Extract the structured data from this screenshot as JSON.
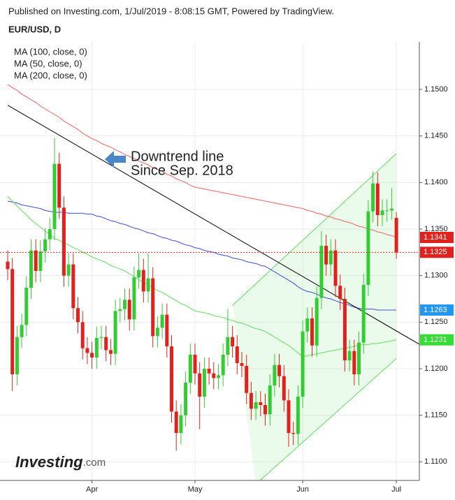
{
  "source": "Published on Investing.com, 1/Jul/2019 - 8:08:15 GMT, Powered by TradingView.",
  "logo": {
    "name": "Investing",
    "suffix": ".com"
  },
  "chart_data": {
    "type": "candlestick",
    "title": "EUR/USD, D",
    "annotations": [
      "Downtrend line",
      "Since Sep. 2018"
    ],
    "categories": [
      null,
      null,
      null,
      null,
      null,
      null,
      null,
      null,
      null,
      null,
      null,
      null,
      null,
      null,
      null,
      null,
      null,
      null,
      "Apr",
      null,
      null,
      null,
      null,
      null,
      null,
      null,
      null,
      null,
      null,
      null,
      null,
      null,
      null,
      null,
      null,
      null,
      null,
      null,
      null,
      null,
      "May",
      null,
      null,
      null,
      null,
      null,
      null,
      null,
      null,
      null,
      null,
      null,
      null,
      null,
      null,
      null,
      null,
      null,
      null,
      null,
      null,
      null,
      null,
      "Jun",
      null,
      null,
      null,
      null,
      null,
      null,
      null,
      null,
      null,
      null,
      null,
      null,
      null,
      null,
      null,
      null,
      null,
      null,
      null,
      "Jul"
    ],
    "open": [
      1.1315,
      1.1307,
      1.1194,
      1.1234,
      1.1247,
      1.1287,
      1.1327,
      1.1305,
      1.1326,
      1.1339,
      1.135,
      1.142,
      1.1373,
      1.13,
      1.1312,
      1.1265,
      1.125,
      1.1222,
      1.1217,
      1.1212,
      1.1233,
      1.1234,
      1.122,
      1.1216,
      1.1262,
      1.1264,
      1.1274,
      1.1253,
      1.1298,
      1.1306,
      1.1283,
      1.1297,
      1.1235,
      1.1244,
      1.1258,
      1.1224,
      1.1154,
      1.1131,
      1.115,
      1.1185,
      1.1215,
      1.1195,
      1.117,
      1.12,
      1.1195,
      1.119,
      1.1193,
      1.1215,
      1.1234,
      1.1224,
      1.1206,
      1.1203,
      1.1174,
      1.1157,
      1.1164,
      1.1161,
      1.1151,
      1.1182,
      1.1204,
      1.1192,
      1.1166,
      1.1131,
      1.113,
      1.117,
      1.124,
      1.1254,
      1.1225,
      1.1276,
      1.1332,
      1.1312,
      1.1327,
      1.1289,
      1.1275,
      1.1209,
      1.1219,
      1.1194,
      1.1228,
      1.129,
      1.1369,
      1.1399,
      1.1365,
      1.137,
      1.137,
      1.1362
    ],
    "high": [
      1.1327,
      1.1319,
      1.1246,
      1.1259,
      1.1299,
      1.1339,
      1.1339,
      1.1338,
      1.1351,
      1.1362,
      1.1448,
      1.1432,
      1.1385,
      1.1324,
      1.1324,
      1.1277,
      1.1262,
      1.1234,
      1.1229,
      1.1245,
      1.1246,
      1.1246,
      1.1232,
      1.1274,
      1.1276,
      1.1286,
      1.1286,
      1.131,
      1.1324,
      1.1318,
      1.1324,
      1.1309,
      1.1256,
      1.127,
      1.127,
      1.1236,
      1.1166,
      1.1162,
      1.1197,
      1.1227,
      1.1227,
      1.1207,
      1.1212,
      1.1212,
      1.1207,
      1.1205,
      1.1227,
      1.1264,
      1.1246,
      1.1236,
      1.1218,
      1.1215,
      1.1186,
      1.1176,
      1.1176,
      1.1173,
      1.1194,
      1.1216,
      1.1216,
      1.1204,
      1.1178,
      1.1143,
      1.1182,
      1.1252,
      1.1266,
      1.1266,
      1.1288,
      1.1348,
      1.1344,
      1.1339,
      1.1339,
      1.1301,
      1.1287,
      1.1231,
      1.1231,
      1.124,
      1.1302,
      1.1381,
      1.1412,
      1.1411,
      1.1382,
      1.1382,
      1.1394,
      1.1368
    ],
    "low": [
      1.1295,
      1.1176,
      1.1182,
      1.1222,
      1.1235,
      1.1275,
      1.1293,
      1.1293,
      1.1314,
      1.1327,
      1.1338,
      1.1361,
      1.1288,
      1.1288,
      1.1253,
      1.1238,
      1.121,
      1.1205,
      1.12,
      1.12,
      1.1221,
      1.1208,
      1.1204,
      1.1204,
      1.125,
      1.1252,
      1.1241,
      1.1241,
      1.1286,
      1.1271,
      1.1271,
      1.1223,
      1.1223,
      1.1232,
      1.1212,
      1.1142,
      1.1112,
      1.1119,
      1.1138,
      1.1173,
      1.1183,
      1.1135,
      1.1158,
      1.1183,
      1.1178,
      1.1178,
      1.1181,
      1.1203,
      1.1212,
      1.1194,
      1.1191,
      1.1162,
      1.1145,
      1.1145,
      1.1149,
      1.1139,
      1.1139,
      1.117,
      1.118,
      1.1154,
      1.1116,
      1.1118,
      1.1118,
      1.1158,
      1.1228,
      1.1213,
      1.1213,
      1.1264,
      1.13,
      1.13,
      1.1277,
      1.1263,
      1.1197,
      1.1197,
      1.1182,
      1.1182,
      1.1216,
      1.1278,
      1.1357,
      1.1353,
      1.1353,
      1.1358,
      1.136,
      1.1318
    ],
    "close": [
      1.1307,
      1.1194,
      1.1234,
      1.1247,
      1.1287,
      1.1327,
      1.1305,
      1.1326,
      1.1339,
      1.135,
      1.142,
      1.1373,
      1.13,
      1.1312,
      1.1265,
      1.125,
      1.1222,
      1.1217,
      1.1212,
      1.1233,
      1.1234,
      1.122,
      1.1216,
      1.1262,
      1.1264,
      1.1274,
      1.1253,
      1.1298,
      1.1306,
      1.1283,
      1.1297,
      1.1235,
      1.1244,
      1.1258,
      1.1224,
      1.1154,
      1.1131,
      1.115,
      1.1185,
      1.1215,
      1.1195,
      1.117,
      1.12,
      1.1195,
      1.119,
      1.1193,
      1.1215,
      1.1234,
      1.1224,
      1.1206,
      1.1203,
      1.1174,
      1.1157,
      1.1164,
      1.1161,
      1.1151,
      1.1182,
      1.1204,
      1.1192,
      1.1166,
      1.1131,
      1.113,
      1.117,
      1.124,
      1.1254,
      1.1225,
      1.1276,
      1.1332,
      1.1312,
      1.1327,
      1.1289,
      1.1275,
      1.1209,
      1.1219,
      1.1194,
      1.1228,
      1.129,
      1.1369,
      1.1399,
      1.1365,
      1.137,
      1.137,
      1.1372,
      1.1325
    ],
    "up_color": "#33cc33",
    "down_color": "#e0211d",
    "series": [
      {
        "name": "MA (100, close, 0)",
        "color": "#f0625c",
        "values": [
          1.1505,
          1.1502,
          1.1499,
          1.1495,
          1.1492,
          1.1489,
          1.1486,
          1.1482,
          1.1479,
          1.1476,
          1.1473,
          1.147,
          1.1466,
          1.1463,
          1.146,
          1.1457,
          1.1453,
          1.145,
          1.1447,
          1.1445,
          1.1442,
          1.144,
          1.1438,
          1.1435,
          1.1433,
          1.143,
          1.1428,
          1.1426,
          1.1423,
          1.1421,
          1.1419,
          1.1416,
          1.1414,
          1.1412,
          1.1409,
          1.1407,
          1.1404,
          1.1402,
          1.14,
          1.1397,
          1.1395,
          1.1394,
          1.1393,
          1.1392,
          1.1391,
          1.139,
          1.1389,
          1.1388,
          1.1387,
          1.1386,
          1.1385,
          1.1384,
          1.1383,
          1.1382,
          1.1381,
          1.138,
          1.1379,
          1.1378,
          1.1377,
          1.1376,
          1.1375,
          1.1374,
          1.1373,
          1.1372,
          1.137,
          1.1369,
          1.1367,
          1.1366,
          1.1364,
          1.1363,
          1.1361,
          1.136,
          1.1358,
          1.1357,
          1.1355,
          1.1353,
          1.1352,
          1.135,
          1.1349,
          1.1347,
          1.1346,
          1.1344,
          1.1343,
          1.1341
        ]
      },
      {
        "name": "MA (50, close, 0)",
        "color": "#3b4fd8",
        "values": [
          1.138,
          1.1379,
          1.1378,
          1.1376,
          1.1375,
          1.1374,
          1.1373,
          1.1372,
          1.137,
          1.1369,
          1.1368,
          1.1368,
          1.1368,
          1.1367,
          1.1367,
          1.1367,
          1.1367,
          1.1366,
          1.1366,
          1.1364,
          1.1363,
          1.1361,
          1.1359,
          1.1358,
          1.1356,
          1.1355,
          1.1353,
          1.1351,
          1.135,
          1.1348,
          1.1346,
          1.1345,
          1.1343,
          1.1341,
          1.134,
          1.1338,
          1.1337,
          1.1335,
          1.1333,
          1.1332,
          1.133,
          1.1329,
          1.1327,
          1.1326,
          1.1325,
          1.1323,
          1.1322,
          1.1321,
          1.1319,
          1.1318,
          1.1317,
          1.1315,
          1.1314,
          1.1313,
          1.1311,
          1.131,
          1.1307,
          1.1304,
          1.1301,
          1.1298,
          1.1295,
          1.1292,
          1.1288,
          1.1285,
          1.1283,
          1.1282,
          1.128,
          1.1278,
          1.1276,
          1.1275,
          1.1273,
          1.1271,
          1.127,
          1.1268,
          1.1266,
          1.1265,
          1.1264,
          1.1264,
          1.1264,
          1.1263,
          1.1263,
          1.1263,
          1.1263,
          1.1263
        ]
      },
      {
        "name": "MA (200, close, 0)",
        "color": "#5ee05e",
        "values": [
          1.1385,
          1.138,
          1.1375,
          1.137,
          1.1365,
          1.136,
          1.1356,
          1.1352,
          1.1348,
          1.1344,
          1.134,
          1.1338,
          1.1335,
          1.1333,
          1.133,
          1.1328,
          1.1325,
          1.1323,
          1.132,
          1.1318,
          1.1316,
          1.1314,
          1.1311,
          1.1309,
          1.1307,
          1.1305,
          1.1302,
          1.1299,
          1.1296,
          1.1293,
          1.129,
          1.1287,
          1.1284,
          1.1282,
          1.1279,
          1.1276,
          1.1273,
          1.127,
          1.1268,
          1.1265,
          1.1262,
          1.1261,
          1.126,
          1.1259,
          1.1257,
          1.1256,
          1.1255,
          1.1253,
          1.1252,
          1.125,
          1.1249,
          1.1247,
          1.1245,
          1.1243,
          1.1242,
          1.124,
          1.1237,
          1.1234,
          1.1231,
          1.1228,
          1.1225,
          1.1221,
          1.1217,
          1.1213,
          1.1214,
          1.1215,
          1.1216,
          1.1217,
          1.1218,
          1.1219,
          1.122,
          1.1221,
          1.1222,
          1.1223,
          1.1224,
          1.1225,
          1.1226,
          1.1226,
          1.1227,
          1.1227,
          1.1228,
          1.1229,
          1.123,
          1.1231
        ]
      }
    ],
    "trendline": {
      "color": "#000000",
      "x": [
        0,
        88
      ],
      "values": [
        1.1483,
        1.1226
      ]
    },
    "channel": {
      "color": "#5ee05e",
      "upper": {
        "x": [
          48,
          83
        ],
        "values": [
          1.1268,
          1.1431
        ]
      },
      "lower": {
        "x": [
          53,
          83
        ],
        "values": [
          1.1076,
          1.1211
        ]
      }
    },
    "price_labels": [
      {
        "value": 1.1341,
        "color": "#e0211d"
      },
      {
        "value": 1.1325,
        "color": "#e0211d",
        "line": true
      },
      {
        "value": 1.1263,
        "color": "#2196f3"
      },
      {
        "value": 1.1231,
        "color": "#33dd33"
      }
    ],
    "ylim": [
      1.108,
      1.1551
    ],
    "yticks": [
      {
        "value": 1.11,
        "label": "1.1100"
      },
      {
        "value": 1.115,
        "label": "1.1150"
      },
      {
        "value": 1.12,
        "label": "1.1200"
      },
      {
        "value": 1.125,
        "label": "1.1250"
      },
      {
        "value": 1.13,
        "label": "1.1300"
      },
      {
        "value": 1.135,
        "label": "1.1350"
      },
      {
        "value": 1.14,
        "label": "1.1400"
      },
      {
        "value": 1.145,
        "label": "1.1450"
      },
      {
        "value": 1.15,
        "label": "1.1500"
      }
    ],
    "grid": true,
    "legend": "top-left"
  }
}
